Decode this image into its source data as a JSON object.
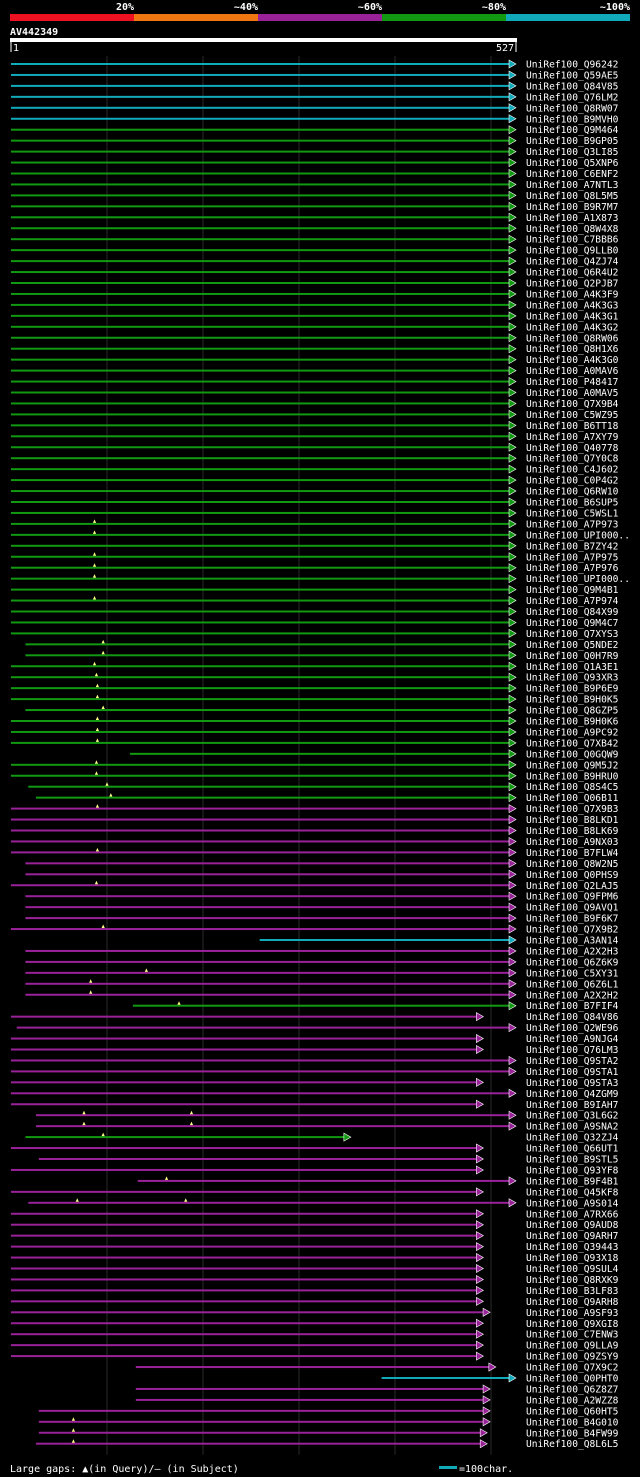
{
  "legend": {
    "colors": [
      "#ee1122",
      "#ee7711",
      "#992299",
      "#119911",
      "#11aabb"
    ],
    "labels": [
      "20%",
      "~40%",
      "~60%",
      "~80%",
      "~100%"
    ]
  },
  "query": {
    "name": "AV442349",
    "start": "1",
    "end": "527",
    "length": 527
  },
  "footer": {
    "gaps": "Large gaps: ▲(in Query)/– (in Subject)",
    "scale": "=100char."
  },
  "hits": [
    {
      "id": "UniRef100_Q96242",
      "s": 1,
      "e": 527,
      "c": 4,
      "g": []
    },
    {
      "id": "UniRef100_Q59AE5",
      "s": 1,
      "e": 527,
      "c": 4,
      "g": []
    },
    {
      "id": "UniRef100_Q84V85",
      "s": 1,
      "e": 527,
      "c": 4,
      "g": []
    },
    {
      "id": "UniRef100_Q76LM2",
      "s": 1,
      "e": 527,
      "c": 4,
      "g": []
    },
    {
      "id": "UniRef100_Q8RW07",
      "s": 1,
      "e": 527,
      "c": 4,
      "g": []
    },
    {
      "id": "UniRef100_B9MVH0",
      "s": 1,
      "e": 527,
      "c": 4,
      "g": []
    },
    {
      "id": "UniRef100_Q9M464",
      "s": 1,
      "e": 527,
      "c": 3,
      "g": []
    },
    {
      "id": "UniRef100_B9GP05",
      "s": 1,
      "e": 527,
      "c": 3,
      "g": []
    },
    {
      "id": "UniRef100_Q3LI85",
      "s": 1,
      "e": 527,
      "c": 3,
      "g": []
    },
    {
      "id": "UniRef100_Q5XNP6",
      "s": 1,
      "e": 527,
      "c": 3,
      "g": []
    },
    {
      "id": "UniRef100_C6ENF2",
      "s": 1,
      "e": 527,
      "c": 3,
      "g": []
    },
    {
      "id": "UniRef100_A7NTL3",
      "s": 1,
      "e": 527,
      "c": 3,
      "g": []
    },
    {
      "id": "UniRef100_Q8L5M5",
      "s": 1,
      "e": 527,
      "c": 3,
      "g": []
    },
    {
      "id": "UniRef100_B9R7M7",
      "s": 1,
      "e": 527,
      "c": 3,
      "g": []
    },
    {
      "id": "UniRef100_A1X873",
      "s": 1,
      "e": 527,
      "c": 3,
      "g": []
    },
    {
      "id": "UniRef100_Q8W4X8",
      "s": 1,
      "e": 527,
      "c": 3,
      "g": []
    },
    {
      "id": "UniRef100_C7BBB6",
      "s": 1,
      "e": 527,
      "c": 3,
      "g": []
    },
    {
      "id": "UniRef100_Q9LLB0",
      "s": 1,
      "e": 527,
      "c": 3,
      "g": []
    },
    {
      "id": "UniRef100_Q4ZJ74",
      "s": 1,
      "e": 527,
      "c": 3,
      "g": []
    },
    {
      "id": "UniRef100_Q6R4U2",
      "s": 1,
      "e": 527,
      "c": 3,
      "g": []
    },
    {
      "id": "UniRef100_Q2PJB7",
      "s": 1,
      "e": 527,
      "c": 3,
      "g": []
    },
    {
      "id": "UniRef100_A4K3F9",
      "s": 1,
      "e": 527,
      "c": 3,
      "g": []
    },
    {
      "id": "UniRef100_A4K3G3",
      "s": 1,
      "e": 527,
      "c": 3,
      "g": []
    },
    {
      "id": "UniRef100_A4K3G1",
      "s": 1,
      "e": 527,
      "c": 3,
      "g": []
    },
    {
      "id": "UniRef100_A4K3G2",
      "s": 1,
      "e": 527,
      "c": 3,
      "g": []
    },
    {
      "id": "UniRef100_Q8RW06",
      "s": 1,
      "e": 527,
      "c": 3,
      "g": []
    },
    {
      "id": "UniRef100_Q8H1X6",
      "s": 1,
      "e": 527,
      "c": 3,
      "g": []
    },
    {
      "id": "UniRef100_A4K3G0",
      "s": 1,
      "e": 527,
      "c": 3,
      "g": []
    },
    {
      "id": "UniRef100_A0MAV6",
      "s": 1,
      "e": 527,
      "c": 3,
      "g": []
    },
    {
      "id": "UniRef100_P48417",
      "s": 1,
      "e": 527,
      "c": 3,
      "g": []
    },
    {
      "id": "UniRef100_A0MAV5",
      "s": 1,
      "e": 527,
      "c": 3,
      "g": []
    },
    {
      "id": "UniRef100_Q7X9B4",
      "s": 1,
      "e": 527,
      "c": 3,
      "g": []
    },
    {
      "id": "UniRef100_C5WZ95",
      "s": 1,
      "e": 527,
      "c": 3,
      "g": []
    },
    {
      "id": "UniRef100_B6TT18",
      "s": 1,
      "e": 527,
      "c": 3,
      "g": []
    },
    {
      "id": "UniRef100_A7XY79",
      "s": 1,
      "e": 527,
      "c": 3,
      "g": []
    },
    {
      "id": "UniRef100_Q40778",
      "s": 1,
      "e": 527,
      "c": 3,
      "g": []
    },
    {
      "id": "UniRef100_Q7Y0C8",
      "s": 1,
      "e": 527,
      "c": 3,
      "g": []
    },
    {
      "id": "UniRef100_C4J602",
      "s": 1,
      "e": 527,
      "c": 3,
      "g": []
    },
    {
      "id": "UniRef100_C0P4G2",
      "s": 1,
      "e": 527,
      "c": 3,
      "g": []
    },
    {
      "id": "UniRef100_Q6RW10",
      "s": 1,
      "e": 527,
      "c": 3,
      "g": []
    },
    {
      "id": "UniRef100_B6SUP5",
      "s": 1,
      "e": 527,
      "c": 3,
      "g": []
    },
    {
      "id": "UniRef100_C5WSL1",
      "s": 1,
      "e": 527,
      "c": 3,
      "g": []
    },
    {
      "id": "UniRef100_A7P973",
      "s": 1,
      "e": 527,
      "c": 3,
      "g": [
        88
      ]
    },
    {
      "id": "UniRef100_UPI000..",
      "s": 1,
      "e": 527,
      "c": 3,
      "g": [
        88
      ]
    },
    {
      "id": "UniRef100_B7ZY42",
      "s": 1,
      "e": 527,
      "c": 3,
      "g": []
    },
    {
      "id": "UniRef100_A7P975",
      "s": 1,
      "e": 527,
      "c": 3,
      "g": [
        88
      ]
    },
    {
      "id": "UniRef100_A7P976",
      "s": 1,
      "e": 527,
      "c": 3,
      "g": [
        88
      ]
    },
    {
      "id": "UniRef100_UPI000..",
      "s": 1,
      "e": 527,
      "c": 3,
      "g": [
        88
      ]
    },
    {
      "id": "UniRef100_Q9M4B1",
      "s": 1,
      "e": 527,
      "c": 3,
      "g": []
    },
    {
      "id": "UniRef100_A7P974",
      "s": 1,
      "e": 527,
      "c": 3,
      "g": [
        88
      ]
    },
    {
      "id": "UniRef100_Q84X99",
      "s": 1,
      "e": 527,
      "c": 3,
      "g": []
    },
    {
      "id": "UniRef100_Q9M4C7",
      "s": 1,
      "e": 527,
      "c": 3,
      "g": []
    },
    {
      "id": "UniRef100_Q7XYS3",
      "s": 1,
      "e": 527,
      "c": 3,
      "g": []
    },
    {
      "id": "UniRef100_Q5NDE2",
      "s": 16,
      "e": 527,
      "c": 3,
      "g": [
        97
      ]
    },
    {
      "id": "UniRef100_Q0H7R9",
      "s": 16,
      "e": 527,
      "c": 3,
      "g": [
        97
      ]
    },
    {
      "id": "UniRef100_Q1A3E1",
      "s": 1,
      "e": 527,
      "c": 3,
      "g": [
        88
      ]
    },
    {
      "id": "UniRef100_Q93XR3",
      "s": 1,
      "e": 527,
      "c": 3,
      "g": [
        90
      ]
    },
    {
      "id": "UniRef100_B9P6E9",
      "s": 1,
      "e": 527,
      "c": 3,
      "g": [
        91
      ]
    },
    {
      "id": "UniRef100_B9H0K5",
      "s": 1,
      "e": 527,
      "c": 3,
      "g": [
        91
      ]
    },
    {
      "id": "UniRef100_Q8GZP5",
      "s": 16,
      "e": 527,
      "c": 3,
      "g": [
        97
      ]
    },
    {
      "id": "UniRef100_B9H0K6",
      "s": 1,
      "e": 527,
      "c": 3,
      "g": [
        91
      ]
    },
    {
      "id": "UniRef100_A9PC92",
      "s": 1,
      "e": 527,
      "c": 3,
      "g": [
        91
      ]
    },
    {
      "id": "UniRef100_Q7XB42",
      "s": 1,
      "e": 527,
      "c": 3,
      "g": [
        91
      ]
    },
    {
      "id": "UniRef100_Q0GQW9",
      "s": 125,
      "e": 527,
      "c": 3,
      "g": []
    },
    {
      "id": "UniRef100_Q9M5J2",
      "s": 1,
      "e": 527,
      "c": 3,
      "g": [
        90
      ]
    },
    {
      "id": "UniRef100_B9HRU0",
      "s": 1,
      "e": 527,
      "c": 3,
      "g": [
        90
      ]
    },
    {
      "id": "UniRef100_Q8S4C5",
      "s": 19,
      "e": 527,
      "c": 3,
      "g": [
        101
      ]
    },
    {
      "id": "UniRef100_Q06B11",
      "s": 27,
      "e": 527,
      "c": 3,
      "g": [
        105
      ]
    },
    {
      "id": "UniRef100_Q7X9B3",
      "s": 1,
      "e": 527,
      "c": 2,
      "g": [
        91
      ]
    },
    {
      "id": "UniRef100_B8LKD1",
      "s": 1,
      "e": 527,
      "c": 2,
      "g": []
    },
    {
      "id": "UniRef100_B8LK69",
      "s": 1,
      "e": 527,
      "c": 2,
      "g": []
    },
    {
      "id": "UniRef100_A9NX03",
      "s": 1,
      "e": 527,
      "c": 2,
      "g": []
    },
    {
      "id": "UniRef100_B7FLW4",
      "s": 1,
      "e": 527,
      "c": 2,
      "g": [
        91
      ]
    },
    {
      "id": "UniRef100_Q8W2N5",
      "s": 16,
      "e": 527,
      "c": 2,
      "g": []
    },
    {
      "id": "UniRef100_Q0PHS9",
      "s": 16,
      "e": 527,
      "c": 2,
      "g": []
    },
    {
      "id": "UniRef100_Q2LAJ5",
      "s": 1,
      "e": 527,
      "c": 2,
      "g": [
        90
      ]
    },
    {
      "id": "UniRef100_Q9FPM6",
      "s": 16,
      "e": 527,
      "c": 2,
      "g": []
    },
    {
      "id": "UniRef100_Q9AVQ1",
      "s": 16,
      "e": 527,
      "c": 2,
      "g": []
    },
    {
      "id": "UniRef100_B9F6K7",
      "s": 16,
      "e": 527,
      "c": 2,
      "g": []
    },
    {
      "id": "UniRef100_Q7X9B2",
      "s": 1,
      "e": 527,
      "c": 2,
      "g": [
        97
      ]
    },
    {
      "id": "UniRef100_A3AN14",
      "s": 260,
      "e": 527,
      "c": 4,
      "g": []
    },
    {
      "id": "UniRef100_A2X2H3",
      "s": 16,
      "e": 527,
      "c": 2,
      "g": []
    },
    {
      "id": "UniRef100_Q6Z6K9",
      "s": 16,
      "e": 527,
      "c": 2,
      "g": []
    },
    {
      "id": "UniRef100_C5XY31",
      "s": 16,
      "e": 527,
      "c": 2,
      "g": [
        142
      ]
    },
    {
      "id": "UniRef100_Q6Z6L1",
      "s": 16,
      "e": 527,
      "c": 2,
      "g": [
        84
      ]
    },
    {
      "id": "UniRef100_A2X2H2",
      "s": 16,
      "e": 527,
      "c": 2,
      "g": [
        84
      ]
    },
    {
      "id": "UniRef100_B7FIF4",
      "s": 128,
      "e": 527,
      "c": 3,
      "g": [
        176
      ]
    },
    {
      "id": "UniRef100_Q84V86",
      "s": 1,
      "e": 493,
      "c": 2,
      "g": []
    },
    {
      "id": "UniRef100_Q2WE96",
      "s": 7,
      "e": 527,
      "c": 2,
      "g": []
    },
    {
      "id": "UniRef100_A9NJG4",
      "s": 1,
      "e": 493,
      "c": 2,
      "g": []
    },
    {
      "id": "UniRef100_Q76LM3",
      "s": 1,
      "e": 493,
      "c": 2,
      "g": []
    },
    {
      "id": "UniRef100_Q9STA2",
      "s": 1,
      "e": 527,
      "c": 2,
      "g": []
    },
    {
      "id": "UniRef100_Q9STA1",
      "s": 1,
      "e": 527,
      "c": 2,
      "g": []
    },
    {
      "id": "UniRef100_Q9STA3",
      "s": 1,
      "e": 493,
      "c": 2,
      "g": []
    },
    {
      "id": "UniRef100_Q4ZGM9",
      "s": 1,
      "e": 527,
      "c": 2,
      "g": []
    },
    {
      "id": "UniRef100_B9IAH7",
      "s": 1,
      "e": 493,
      "c": 2,
      "g": []
    },
    {
      "id": "UniRef100_Q3L6G2",
      "s": 27,
      "e": 527,
      "c": 2,
      "g": [
        77,
        189
      ]
    },
    {
      "id": "UniRef100_A9SNA2",
      "s": 27,
      "e": 527,
      "c": 2,
      "g": [
        77,
        189
      ]
    },
    {
      "id": "UniRef100_Q32ZJ4",
      "s": 16,
      "e": 355,
      "c": 3,
      "g": [
        97
      ]
    },
    {
      "id": "UniRef100_Q66UT1",
      "s": 1,
      "e": 493,
      "c": 2,
      "g": []
    },
    {
      "id": "UniRef100_B9STL5",
      "s": 30,
      "e": 493,
      "c": 2,
      "g": []
    },
    {
      "id": "UniRef100_Q93YF8",
      "s": 1,
      "e": 493,
      "c": 2,
      "g": []
    },
    {
      "id": "UniRef100_B9F4B1",
      "s": 133,
      "e": 527,
      "c": 2,
      "g": [
        163
      ]
    },
    {
      "id": "UniRef100_Q45KF8",
      "s": 1,
      "e": 493,
      "c": 2,
      "g": []
    },
    {
      "id": "UniRef100_A9S014",
      "s": 19,
      "e": 527,
      "c": 2,
      "g": [
        70,
        183
      ]
    },
    {
      "id": "UniRef100_A7RX66",
      "s": 1,
      "e": 493,
      "c": 2,
      "g": []
    },
    {
      "id": "UniRef100_Q9AUD8",
      "s": 1,
      "e": 493,
      "c": 2,
      "g": []
    },
    {
      "id": "UniRef100_Q9ARH7",
      "s": 1,
      "e": 493,
      "c": 2,
      "g": []
    },
    {
      "id": "UniRef100_Q39443",
      "s": 1,
      "e": 493,
      "c": 2,
      "g": []
    },
    {
      "id": "UniRef100_Q93X18",
      "s": 1,
      "e": 493,
      "c": 2,
      "g": []
    },
    {
      "id": "UniRef100_Q9SUL4",
      "s": 1,
      "e": 493,
      "c": 2,
      "g": []
    },
    {
      "id": "UniRef100_Q8RXK9",
      "s": 1,
      "e": 493,
      "c": 2,
      "g": []
    },
    {
      "id": "UniRef100_B3LF83",
      "s": 1,
      "e": 493,
      "c": 2,
      "g": []
    },
    {
      "id": "UniRef100_Q9ARH8",
      "s": 1,
      "e": 493,
      "c": 2,
      "g": []
    },
    {
      "id": "UniRef100_A9SF93",
      "s": 1,
      "e": 500,
      "c": 2,
      "g": []
    },
    {
      "id": "UniRef100_Q9XGI8",
      "s": 1,
      "e": 493,
      "c": 2,
      "g": []
    },
    {
      "id": "UniRef100_C7ENW3",
      "s": 1,
      "e": 493,
      "c": 2,
      "g": []
    },
    {
      "id": "UniRef100_Q9LLA9",
      "s": 1,
      "e": 493,
      "c": 2,
      "g": []
    },
    {
      "id": "UniRef100_Q9ZSY9",
      "s": 1,
      "e": 493,
      "c": 2,
      "g": []
    },
    {
      "id": "UniRef100_Q7X9C2",
      "s": 131,
      "e": 506,
      "c": 2,
      "g": []
    },
    {
      "id": "UniRef100_Q0PHT0",
      "s": 387,
      "e": 527,
      "c": 4,
      "g": []
    },
    {
      "id": "UniRef100_Q6Z8Z7",
      "s": 131,
      "e": 500,
      "c": 2,
      "g": []
    },
    {
      "id": "UniRef100_A2WZZ8",
      "s": 131,
      "e": 500,
      "c": 2,
      "g": []
    },
    {
      "id": "UniRef100_Q60HT5",
      "s": 30,
      "e": 500,
      "c": 2,
      "g": []
    },
    {
      "id": "UniRef100_B4G010",
      "s": 30,
      "e": 500,
      "c": 2,
      "g": [
        66
      ]
    },
    {
      "id": "UniRef100_B4FW99",
      "s": 30,
      "e": 497,
      "c": 2,
      "g": [
        66
      ]
    },
    {
      "id": "UniRef100_Q8L6L5",
      "s": 27,
      "e": 497,
      "c": 2,
      "g": [
        66
      ]
    }
  ]
}
